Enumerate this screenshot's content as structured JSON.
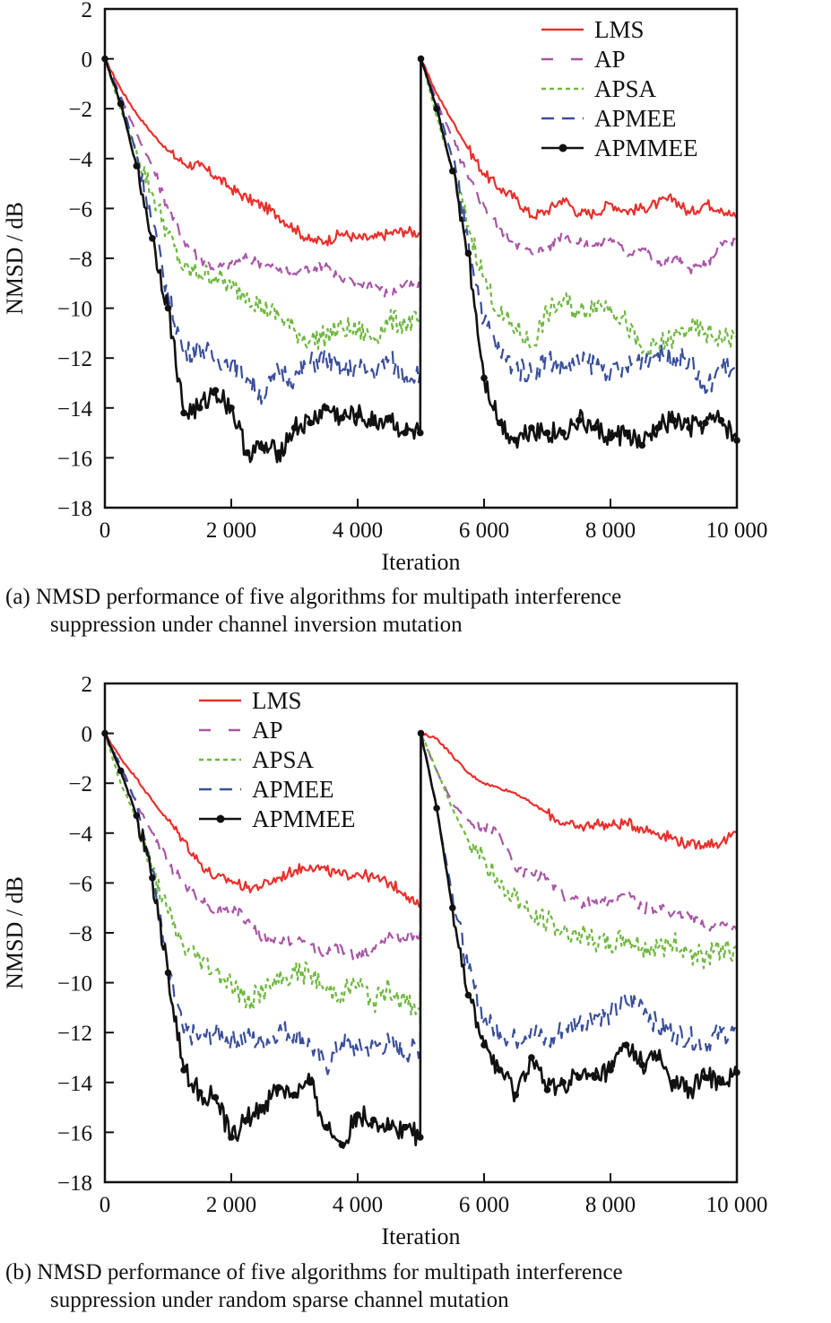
{
  "chart_data": [
    {
      "type": "line",
      "panel": "a",
      "title": "",
      "caption_line1": "(a) NMSD performance of five algorithms for multipath interference",
      "caption_line2": "suppression under channel inversion mutation",
      "xlabel": "Iteration",
      "ylabel": "NMSD / dB",
      "xlim": [
        0,
        10000
      ],
      "ylim": [
        -18,
        2
      ],
      "xticks": [
        0,
        2000,
        4000,
        6000,
        8000,
        10000
      ],
      "xtick_labels": [
        "0",
        "2 000",
        "4 000",
        "6 000",
        "8 000",
        "10 000"
      ],
      "yticks": [
        2,
        0,
        -2,
        -4,
        -6,
        -8,
        -10,
        -12,
        -14,
        -16,
        -18
      ],
      "ytick_labels": [
        "2",
        "0",
        "−2",
        "−4",
        "−6",
        "−8",
        "−10",
        "−12",
        "−14",
        "−16",
        "−18"
      ],
      "legend_position": "top-right",
      "grid": false,
      "x": [
        0,
        250,
        500,
        750,
        1000,
        1250,
        1500,
        1750,
        2000,
        2250,
        2500,
        2750,
        3000,
        3250,
        3500,
        3750,
        4000,
        4250,
        4500,
        4750,
        4990,
        5000,
        5250,
        5500,
        5750,
        6000,
        6250,
        6500,
        6750,
        7000,
        7250,
        7500,
        7750,
        8000,
        8250,
        8500,
        8750,
        9000,
        9250,
        9500,
        9750,
        10000
      ],
      "series": [
        {
          "name": "LMS",
          "color": "#e8302c",
          "style": "solid",
          "values": [
            0,
            -1.2,
            -2.2,
            -3.0,
            -3.7,
            -4.2,
            -4.3,
            -4.7,
            -5.2,
            -5.6,
            -5.9,
            -6.3,
            -6.8,
            -7.3,
            -7.3,
            -7.0,
            -7.2,
            -7.2,
            -7.0,
            -6.9,
            -7.0,
            0,
            -1.4,
            -2.5,
            -3.6,
            -4.6,
            -5.2,
            -5.6,
            -6.3,
            -6.1,
            -5.6,
            -6.2,
            -6.2,
            -5.8,
            -6.1,
            -6.0,
            -5.8,
            -5.6,
            -6.2,
            -5.8,
            -6.0,
            -6.4
          ]
        },
        {
          "name": "AP",
          "color": "#a956a6",
          "style": "dashed",
          "values": [
            0,
            -1.5,
            -3.0,
            -4.3,
            -6.0,
            -7.3,
            -8.0,
            -8.4,
            -8.2,
            -8.0,
            -8.2,
            -8.5,
            -8.6,
            -8.4,
            -8.2,
            -8.9,
            -9.0,
            -9.0,
            -9.5,
            -9.0,
            -9.2,
            0,
            -1.7,
            -3.2,
            -4.8,
            -5.9,
            -6.8,
            -7.4,
            -7.8,
            -7.6,
            -7.0,
            -7.4,
            -7.5,
            -7.2,
            -7.8,
            -7.6,
            -8.2,
            -8.0,
            -8.4,
            -8.3,
            -7.4,
            -7.3
          ]
        },
        {
          "name": "APSA",
          "color": "#6fb83f",
          "style": "dotted",
          "values": [
            0,
            -2.0,
            -3.7,
            -5.4,
            -7.0,
            -8.5,
            -8.6,
            -8.7,
            -9.2,
            -9.4,
            -10.0,
            -10.3,
            -10.9,
            -11.3,
            -11.1,
            -10.8,
            -10.9,
            -11.2,
            -10.5,
            -10.6,
            -10.5,
            0,
            -2.3,
            -4.5,
            -6.7,
            -8.8,
            -10.3,
            -10.8,
            -11.5,
            -10.2,
            -9.7,
            -10.2,
            -9.8,
            -9.9,
            -10.6,
            -11.8,
            -11.5,
            -11.2,
            -10.8,
            -11.0,
            -11.2,
            -11.2
          ]
        },
        {
          "name": "APMEE",
          "color": "#3a4f9a",
          "style": "dashed",
          "values": [
            0,
            -1.6,
            -3.8,
            -6.5,
            -9.5,
            -11.8,
            -11.6,
            -12.0,
            -12.2,
            -12.8,
            -13.5,
            -12.5,
            -12.8,
            -12.2,
            -12.0,
            -12.5,
            -12.4,
            -12.6,
            -12.0,
            -12.8,
            -12.5,
            0,
            -1.8,
            -4.0,
            -7.3,
            -10.5,
            -11.8,
            -12.4,
            -12.6,
            -12.0,
            -12.4,
            -12.2,
            -12.2,
            -12.6,
            -12.4,
            -12.0,
            -11.8,
            -12.0,
            -12.0,
            -13.4,
            -12.2,
            -12.6
          ]
        },
        {
          "name": "APMMEE",
          "color": "#111111",
          "style": "solid-marker",
          "values": [
            0,
            -1.8,
            -4.3,
            -7.2,
            -10.0,
            -14.2,
            -14.0,
            -13.3,
            -14.0,
            -15.8,
            -15.6,
            -15.8,
            -14.8,
            -14.6,
            -14.0,
            -14.4,
            -14.3,
            -14.6,
            -14.4,
            -15.0,
            -15.0,
            0,
            -2.0,
            -4.5,
            -7.8,
            -12.8,
            -14.6,
            -15.3,
            -14.8,
            -15.0,
            -15.0,
            -14.5,
            -14.8,
            -15.2,
            -15.0,
            -15.5,
            -14.8,
            -14.5,
            -14.8,
            -14.6,
            -14.5,
            -15.3
          ]
        }
      ]
    },
    {
      "type": "line",
      "panel": "b",
      "title": "",
      "caption_line1": "(b) NMSD performance of five algorithms for multipath interference",
      "caption_line2": "suppression under random sparse channel mutation",
      "xlabel": "Iteration",
      "ylabel": "NMSD / dB",
      "xlim": [
        0,
        10000
      ],
      "ylim": [
        -18,
        2
      ],
      "xticks": [
        0,
        2000,
        4000,
        6000,
        8000,
        10000
      ],
      "xtick_labels": [
        "0",
        "2 000",
        "4 000",
        "6 000",
        "8 000",
        "10 000"
      ],
      "yticks": [
        2,
        0,
        -2,
        -4,
        -6,
        -8,
        -10,
        -12,
        -14,
        -16,
        -18
      ],
      "ytick_labels": [
        "2",
        "0",
        "−2",
        "−4",
        "−6",
        "−8",
        "−10",
        "−12",
        "−14",
        "−16",
        "−18"
      ],
      "legend_position": "top-center",
      "grid": false,
      "x": [
        0,
        250,
        500,
        750,
        1000,
        1250,
        1500,
        1750,
        2000,
        2250,
        2500,
        2750,
        3000,
        3250,
        3500,
        3750,
        4000,
        4250,
        4500,
        4750,
        4990,
        5000,
        5250,
        5500,
        5750,
        6000,
        6250,
        6500,
        6750,
        7000,
        7250,
        7500,
        7750,
        8000,
        8250,
        8500,
        8750,
        9000,
        9250,
        9500,
        9750,
        10000
      ],
      "series": [
        {
          "name": "LMS",
          "color": "#e8302c",
          "style": "solid",
          "values": [
            0,
            -1.0,
            -1.8,
            -2.7,
            -3.5,
            -4.3,
            -5.2,
            -5.8,
            -5.9,
            -6.2,
            -6.1,
            -5.8,
            -5.5,
            -5.3,
            -5.5,
            -5.7,
            -5.6,
            -5.8,
            -6.0,
            -6.4,
            -7.0,
            0,
            -0.2,
            -0.9,
            -1.6,
            -2.0,
            -2.2,
            -2.4,
            -2.8,
            -3.2,
            -3.6,
            -3.8,
            -3.6,
            -3.7,
            -3.6,
            -3.8,
            -4.0,
            -4.2,
            -4.5,
            -4.4,
            -4.4,
            -4.0
          ]
        },
        {
          "name": "AP",
          "color": "#a956a6",
          "style": "dashed",
          "values": [
            0,
            -1.5,
            -2.8,
            -4.0,
            -5.2,
            -6.0,
            -6.6,
            -7.2,
            -7.0,
            -7.5,
            -8.2,
            -8.3,
            -8.3,
            -8.5,
            -8.8,
            -8.6,
            -9.0,
            -8.6,
            -8.0,
            -8.3,
            -8.0,
            0,
            -1.5,
            -2.8,
            -3.5,
            -3.8,
            -4.1,
            -5.5,
            -5.6,
            -5.8,
            -6.5,
            -6.8,
            -6.8,
            -6.7,
            -6.4,
            -7.0,
            -7.0,
            -7.2,
            -7.3,
            -7.8,
            -7.6,
            -7.9
          ]
        },
        {
          "name": "APSA",
          "color": "#6fb83f",
          "style": "dotted",
          "values": [
            0,
            -2.0,
            -3.4,
            -5.5,
            -7.2,
            -8.6,
            -9.0,
            -9.5,
            -10.0,
            -10.8,
            -10.3,
            -10.0,
            -9.6,
            -9.6,
            -10.3,
            -10.4,
            -10.0,
            -10.8,
            -10.2,
            -10.8,
            -11.1,
            0,
            -1.5,
            -3.0,
            -4.3,
            -5.0,
            -6.2,
            -6.5,
            -7.4,
            -7.5,
            -8.0,
            -8.0,
            -8.4,
            -8.5,
            -8.2,
            -8.6,
            -8.6,
            -8.4,
            -8.8,
            -9.0,
            -8.6,
            -8.8
          ]
        },
        {
          "name": "APMEE",
          "color": "#3a4f9a",
          "style": "dashed",
          "values": [
            0,
            -1.3,
            -2.8,
            -5.5,
            -9.6,
            -12.0,
            -12.2,
            -12.0,
            -12.3,
            -12.2,
            -12.4,
            -11.9,
            -12.0,
            -12.5,
            -13.4,
            -12.4,
            -12.7,
            -12.6,
            -12.4,
            -12.8,
            -12.6,
            0,
            -3.0,
            -6.5,
            -9.5,
            -11.5,
            -12.0,
            -12.3,
            -11.8,
            -12.5,
            -11.8,
            -11.6,
            -11.3,
            -11.3,
            -10.8,
            -10.8,
            -11.8,
            -12.0,
            -12.2,
            -12.4,
            -12.0,
            -12.0
          ]
        },
        {
          "name": "APMMEE",
          "color": "#111111",
          "style": "solid-marker",
          "values": [
            0,
            -1.5,
            -3.3,
            -5.8,
            -9.6,
            -13.5,
            -14.4,
            -14.6,
            -16.2,
            -15.5,
            -15.0,
            -14.2,
            -14.5,
            -14.0,
            -15.8,
            -16.5,
            -15.3,
            -15.5,
            -15.8,
            -15.8,
            -16.2,
            0,
            -3.0,
            -7.0,
            -10.5,
            -12.5,
            -13.5,
            -14.5,
            -13.0,
            -14.3,
            -14.0,
            -13.8,
            -13.8,
            -13.5,
            -12.5,
            -13.3,
            -13.0,
            -14.0,
            -14.3,
            -13.8,
            -14.0,
            -13.6
          ]
        }
      ]
    }
  ]
}
